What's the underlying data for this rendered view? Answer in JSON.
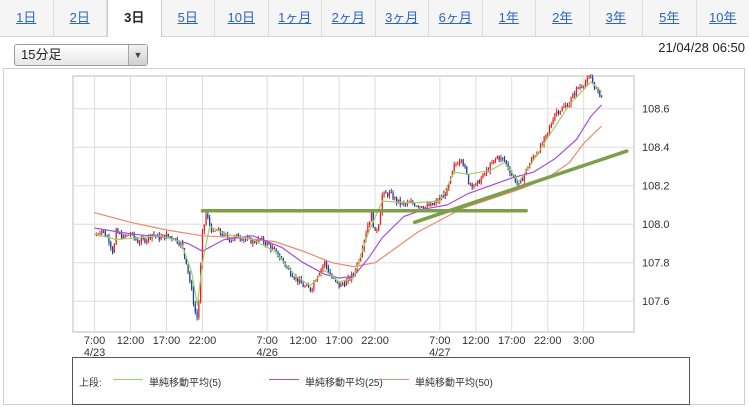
{
  "tabs": [
    {
      "label": "1日",
      "active": false
    },
    {
      "label": "2日",
      "active": false
    },
    {
      "label": "3日",
      "active": true
    },
    {
      "label": "5日",
      "active": false
    },
    {
      "label": "10日",
      "active": false
    },
    {
      "label": "1ヶ月",
      "active": false
    },
    {
      "label": "2ヶ月",
      "active": false
    },
    {
      "label": "3ヶ月",
      "active": false
    },
    {
      "label": "6ヶ月",
      "active": false
    },
    {
      "label": "1年",
      "active": false
    },
    {
      "label": "2年",
      "active": false
    },
    {
      "label": "3年",
      "active": false
    },
    {
      "label": "5年",
      "active": false
    },
    {
      "label": "10年",
      "active": false
    }
  ],
  "interval_select": {
    "value": "15分足"
  },
  "timestamp": "21/04/28 06:50",
  "legend": {
    "title": "上段:",
    "items": [
      {
        "label": "単純移動平均(5)",
        "color": "#9fcf6a"
      },
      {
        "label": "単純移動平均(25)",
        "color": "#a64fd8"
      },
      {
        "label": "単純移動平均(50)",
        "color": "#ec8a6e"
      }
    ]
  },
  "colors": {
    "up": "#e0201c",
    "down": "#1c3f9a",
    "grid": "#dddddd",
    "trendline": "#7ca04a"
  },
  "chart_data": {
    "type": "candlestick",
    "ylim": [
      107.44,
      108.77
    ],
    "y_ticks": [
      107.6,
      107.8,
      108.0,
      108.2,
      108.4,
      108.6
    ],
    "x_ticks": [
      {
        "label": "7:00",
        "date": "4/23",
        "t": 0
      },
      {
        "label": "12:00",
        "t": 5
      },
      {
        "label": "17:00",
        "t": 10
      },
      {
        "label": "22:00",
        "t": 15
      },
      {
        "label": "7:00",
        "date": "4/26",
        "t": 24
      },
      {
        "label": "12:00",
        "t": 29
      },
      {
        "label": "17:00",
        "t": 34
      },
      {
        "label": "22:00",
        "t": 39
      },
      {
        "label": "7:00",
        "date": "4/27",
        "t": 48
      },
      {
        "label": "12:00",
        "t": 53
      },
      {
        "label": "17:00",
        "t": 58
      },
      {
        "label": "22:00",
        "t": 63
      },
      {
        "label": "3:00",
        "t": 68
      }
    ],
    "x_range": [
      -3,
      75
    ],
    "price_path": [
      [
        0,
        107.94
      ],
      [
        1,
        107.97
      ],
      [
        2,
        107.92
      ],
      [
        2.6,
        107.85
      ],
      [
        3,
        107.96
      ],
      [
        4,
        107.93
      ],
      [
        5,
        107.95
      ],
      [
        6,
        107.91
      ],
      [
        7,
        107.92
      ],
      [
        8,
        107.95
      ],
      [
        9,
        107.93
      ],
      [
        10,
        107.94
      ],
      [
        11,
        107.93
      ],
      [
        12,
        107.9
      ],
      [
        12.8,
        107.8
      ],
      [
        13.5,
        107.65
      ],
      [
        14.2,
        107.5
      ],
      [
        14.5,
        107.6
      ],
      [
        15,
        107.95
      ],
      [
        15.5,
        108.05
      ],
      [
        16,
        108.0
      ],
      [
        16.5,
        107.95
      ],
      [
        17,
        107.97
      ],
      [
        18,
        107.94
      ],
      [
        19,
        107.92
      ],
      [
        20,
        107.94
      ],
      [
        21,
        107.92
      ],
      [
        22,
        107.91
      ],
      [
        23,
        107.92
      ],
      [
        24,
        107.9
      ],
      [
        25,
        107.86
      ],
      [
        26,
        107.82
      ],
      [
        27,
        107.76
      ],
      [
        28,
        107.72
      ],
      [
        29,
        107.68
      ],
      [
        30,
        107.66
      ],
      [
        31,
        107.74
      ],
      [
        32,
        107.8
      ],
      [
        33,
        107.72
      ],
      [
        34,
        107.68
      ],
      [
        35,
        107.7
      ],
      [
        36,
        107.74
      ],
      [
        37,
        107.85
      ],
      [
        38,
        108.0
      ],
      [
        38.5,
        108.05
      ],
      [
        39,
        107.95
      ],
      [
        39.6,
        108.02
      ],
      [
        40,
        108.15
      ],
      [
        41,
        108.16
      ],
      [
        42,
        108.12
      ],
      [
        43,
        108.1
      ],
      [
        44,
        108.11
      ],
      [
        45,
        108.1
      ],
      [
        46,
        108.09
      ],
      [
        47,
        108.1
      ],
      [
        48,
        108.13
      ],
      [
        49,
        108.17
      ],
      [
        50,
        108.3
      ],
      [
        51,
        108.35
      ],
      [
        52,
        108.22
      ],
      [
        53,
        108.2
      ],
      [
        54,
        108.25
      ],
      [
        55,
        108.3
      ],
      [
        56,
        108.35
      ],
      [
        57,
        108.33
      ],
      [
        58,
        108.26
      ],
      [
        59,
        108.2
      ],
      [
        60,
        108.28
      ],
      [
        61,
        108.35
      ],
      [
        62,
        108.4
      ],
      [
        63,
        108.47
      ],
      [
        64,
        108.58
      ],
      [
        65,
        108.6
      ],
      [
        66,
        108.63
      ],
      [
        67,
        108.7
      ],
      [
        68,
        108.73
      ],
      [
        69,
        108.76
      ],
      [
        70,
        108.68
      ],
      [
        70.5,
        108.67
      ]
    ],
    "ma5": [
      [
        0,
        107.95
      ],
      [
        3,
        107.92
      ],
      [
        6,
        107.93
      ],
      [
        9,
        107.94
      ],
      [
        12,
        107.91
      ],
      [
        13.5,
        107.75
      ],
      [
        14.3,
        107.58
      ],
      [
        15,
        107.8
      ],
      [
        16,
        107.99
      ],
      [
        18,
        107.95
      ],
      [
        22,
        107.92
      ],
      [
        25,
        107.86
      ],
      [
        28,
        107.73
      ],
      [
        30,
        107.68
      ],
      [
        32,
        107.76
      ],
      [
        34,
        107.7
      ],
      [
        36,
        107.72
      ],
      [
        38,
        107.95
      ],
      [
        40,
        108.12
      ],
      [
        44,
        108.11
      ],
      [
        48,
        108.12
      ],
      [
        50,
        108.27
      ],
      [
        52,
        108.26
      ],
      [
        55,
        108.28
      ],
      [
        57,
        108.32
      ],
      [
        59,
        108.22
      ],
      [
        61,
        108.33
      ],
      [
        63,
        108.45
      ],
      [
        66,
        108.62
      ],
      [
        69,
        108.74
      ],
      [
        70.5,
        108.69
      ]
    ],
    "ma25": [
      [
        0,
        107.98
      ],
      [
        5,
        107.95
      ],
      [
        10,
        107.93
      ],
      [
        13,
        107.9
      ],
      [
        15,
        107.86
      ],
      [
        18,
        107.92
      ],
      [
        22,
        107.94
      ],
      [
        26,
        107.88
      ],
      [
        29,
        107.8
      ],
      [
        32,
        107.74
      ],
      [
        34,
        107.72
      ],
      [
        36,
        107.73
      ],
      [
        38,
        107.82
      ],
      [
        40,
        107.93
      ],
      [
        43,
        108.04
      ],
      [
        46,
        108.08
      ],
      [
        49,
        108.1
      ],
      [
        52,
        108.16
      ],
      [
        55,
        108.2
      ],
      [
        58,
        108.24
      ],
      [
        61,
        108.27
      ],
      [
        64,
        108.34
      ],
      [
        67,
        108.44
      ],
      [
        69,
        108.56
      ],
      [
        70.5,
        108.62
      ]
    ],
    "ma50": [
      [
        0,
        108.06
      ],
      [
        5,
        108.01
      ],
      [
        10,
        107.97
      ],
      [
        15,
        107.94
      ],
      [
        20,
        107.93
      ],
      [
        25,
        107.91
      ],
      [
        29,
        107.86
      ],
      [
        33,
        107.8
      ],
      [
        36,
        107.78
      ],
      [
        39,
        107.8
      ],
      [
        42,
        107.88
      ],
      [
        45,
        107.96
      ],
      [
        48,
        108.02
      ],
      [
        51,
        108.08
      ],
      [
        55,
        108.13
      ],
      [
        59,
        108.18
      ],
      [
        63,
        108.24
      ],
      [
        66,
        108.32
      ],
      [
        68,
        108.42
      ],
      [
        70.5,
        108.51
      ]
    ],
    "trendlines": [
      {
        "from": [
          15,
          108.07
        ],
        "to": [
          60,
          108.07
        ]
      },
      {
        "from": [
          44.5,
          108.01
        ],
        "to": [
          74,
          108.38
        ]
      }
    ]
  }
}
